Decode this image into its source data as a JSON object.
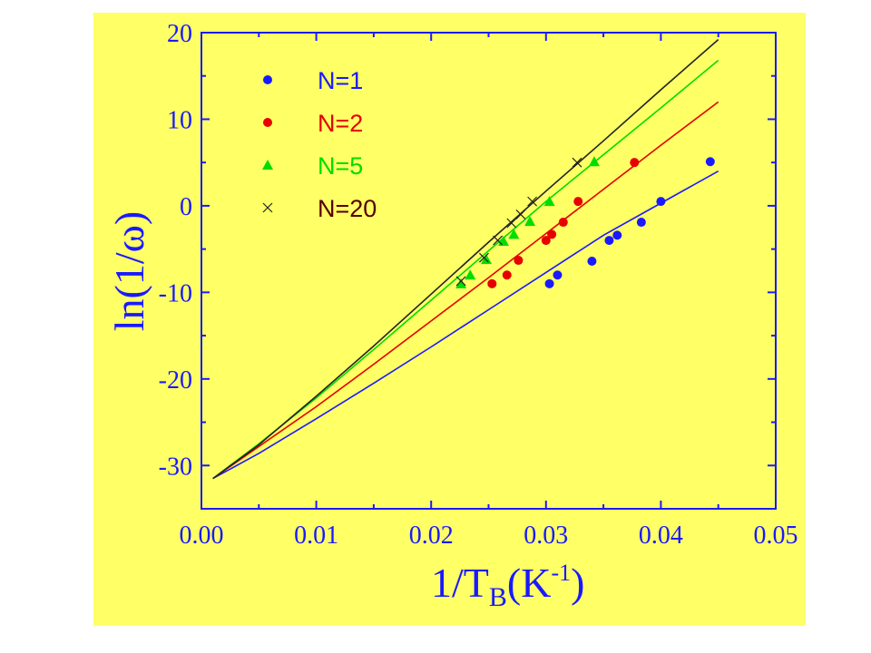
{
  "colors": {
    "background": "#ffff66",
    "axis": "#1a1aff",
    "n1": "#1a1aff",
    "n2": "#e60000",
    "n5": "#00dd00",
    "n20": "#222222",
    "n20_label": "#550000"
  },
  "chart_data": {
    "type": "scatter",
    "title": "",
    "xlabel": {
      "main": "1/T",
      "sub": "B",
      "tail": "(K",
      "sup": "-1",
      "close": ")"
    },
    "ylabel": "ln(1/ω)",
    "xlim": [
      0,
      0.05
    ],
    "ylim": [
      -35,
      20
    ],
    "x_ticks": [
      0.0,
      0.01,
      0.02,
      0.03,
      0.04,
      0.05
    ],
    "x_tick_labels": [
      "0.00",
      "0.01",
      "0.02",
      "0.03",
      "0.04",
      "0.05"
    ],
    "y_ticks": [
      -30,
      -20,
      -10,
      0,
      10,
      20
    ],
    "y_tick_labels": [
      "-30",
      "-20",
      "-10",
      "0",
      "10",
      "20"
    ],
    "grid": false,
    "legend_position": "top-left",
    "series": [
      {
        "name": "N=1",
        "marker": "circle",
        "color_key": "n1",
        "points": [
          [
            0.0303,
            -9.0
          ],
          [
            0.031,
            -8.0
          ],
          [
            0.034,
            -6.4
          ],
          [
            0.0355,
            -4.0
          ],
          [
            0.0362,
            -3.4
          ],
          [
            0.0383,
            -1.9
          ],
          [
            0.04,
            0.5
          ],
          [
            0.0443,
            5.1
          ]
        ],
        "fit": [
          [
            0.001,
            -31.5
          ],
          [
            0.005,
            -28.6
          ],
          [
            0.01,
            -24.6
          ],
          [
            0.015,
            -20.5
          ],
          [
            0.02,
            -16.3
          ],
          [
            0.025,
            -12.0
          ],
          [
            0.03,
            -7.7
          ],
          [
            0.035,
            -3.4
          ],
          [
            0.04,
            0.3
          ],
          [
            0.045,
            4.0
          ]
        ]
      },
      {
        "name": "N=2",
        "marker": "circle",
        "color_key": "n2",
        "points": [
          [
            0.0253,
            -9.0
          ],
          [
            0.0266,
            -8.0
          ],
          [
            0.0276,
            -6.3
          ],
          [
            0.03,
            -4.0
          ],
          [
            0.0305,
            -3.3
          ],
          [
            0.0315,
            -1.9
          ],
          [
            0.0328,
            0.5
          ],
          [
            0.0377,
            5.0
          ]
        ],
        "fit": [
          [
            0.001,
            -31.5
          ],
          [
            0.005,
            -27.8
          ],
          [
            0.01,
            -23.2
          ],
          [
            0.015,
            -18.3
          ],
          [
            0.02,
            -13.3
          ],
          [
            0.025,
            -8.3
          ],
          [
            0.03,
            -3.2
          ],
          [
            0.035,
            1.9
          ],
          [
            0.04,
            7.0
          ],
          [
            0.045,
            12.0
          ]
        ]
      },
      {
        "name": "N=5",
        "marker": "triangle",
        "color_key": "n5",
        "points": [
          [
            0.0226,
            -9.0
          ],
          [
            0.0234,
            -8.0
          ],
          [
            0.0248,
            -6.2
          ],
          [
            0.0263,
            -4.1
          ],
          [
            0.0272,
            -3.3
          ],
          [
            0.0286,
            -1.8
          ],
          [
            0.0303,
            0.5
          ],
          [
            0.0342,
            5.1
          ]
        ],
        "fit": [
          [
            0.001,
            -31.5
          ],
          [
            0.005,
            -27.5
          ],
          [
            0.01,
            -22.2
          ],
          [
            0.015,
            -16.6
          ],
          [
            0.02,
            -10.9
          ],
          [
            0.025,
            -5.2
          ],
          [
            0.03,
            0.5
          ],
          [
            0.035,
            5.9
          ],
          [
            0.04,
            11.3
          ],
          [
            0.045,
            16.8
          ]
        ]
      },
      {
        "name": "N=20",
        "marker": "cross",
        "color_key": "n20",
        "points": [
          [
            0.0226,
            -8.7
          ],
          [
            0.0246,
            -6.0
          ],
          [
            0.0258,
            -4.0
          ],
          [
            0.027,
            -2.0
          ],
          [
            0.0278,
            -1.0
          ],
          [
            0.0288,
            0.5
          ],
          [
            0.0327,
            5.0
          ]
        ],
        "fit": [
          [
            0.001,
            -31.5
          ],
          [
            0.005,
            -27.6
          ],
          [
            0.01,
            -22.0
          ],
          [
            0.015,
            -16.2
          ],
          [
            0.02,
            -10.2
          ],
          [
            0.025,
            -4.2
          ],
          [
            0.03,
            1.7
          ],
          [
            0.035,
            7.5
          ],
          [
            0.04,
            13.4
          ],
          [
            0.045,
            19.2
          ]
        ]
      }
    ]
  }
}
